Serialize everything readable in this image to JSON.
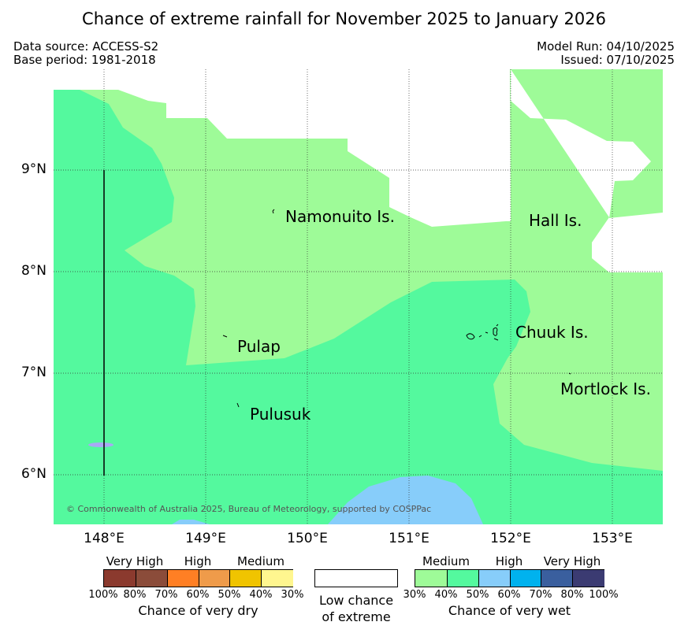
{
  "title": "Chance of extreme rainfall for November 2025 to January 2026",
  "data_source": "Data source: ACCESS-S2",
  "base_period": "Base period: 1981-2018",
  "model_run": "Model Run: 04/10/2025",
  "issued": "Issued: 07/10/2025",
  "copyright": "© Commonwealth of Australia 2025, Bureau of Meteorology, supported by COSPPac",
  "axes": {
    "x_ticks": [
      "148°E",
      "149°E",
      "150°E",
      "151°E",
      "152°E",
      "153°E"
    ],
    "y_ticks": [
      "9°N",
      "8°N",
      "7°N",
      "6°N"
    ]
  },
  "places": {
    "namonuito": "Namonuito Is.",
    "hall": "Hall Is.",
    "pulap": "Pulap",
    "chuuk": "Chuuk Is.",
    "mortlock": "Mortlock Is.",
    "pulusuk": "Pulusuk"
  },
  "legend": {
    "dry": {
      "categories": [
        "Very High",
        "High",
        "Medium"
      ],
      "ticks": [
        "100%",
        "80%",
        "70%",
        "60%",
        "50%",
        "40%",
        "30%"
      ],
      "colors": [
        "#8b3a2e",
        "#8b4c3a",
        "#ff7f24",
        "#ef9b4a",
        "#f0c400",
        "#fff68f"
      ],
      "caption": "Chance of very dry"
    },
    "neutral": {
      "caption_line1": "Low chance",
      "caption_line2": "of extreme",
      "color": "#ffffff"
    },
    "wet": {
      "categories": [
        "Medium",
        "High",
        "Very High"
      ],
      "ticks": [
        "30%",
        "40%",
        "50%",
        "60%",
        "70%",
        "80%",
        "100%"
      ],
      "colors": [
        "#9efb98",
        "#54f99e",
        "#87cdfa",
        "#00b2ee",
        "#3a5f9e",
        "#3b3b72"
      ],
      "caption": "Chance of very wet"
    }
  },
  "map_colors": {
    "wet_30_40": "#9efb98",
    "wet_40_50": "#54f99e",
    "wet_50_60": "#87cdfa",
    "low_chance": "#ffffff",
    "small_patch": "#a9a9f5"
  }
}
